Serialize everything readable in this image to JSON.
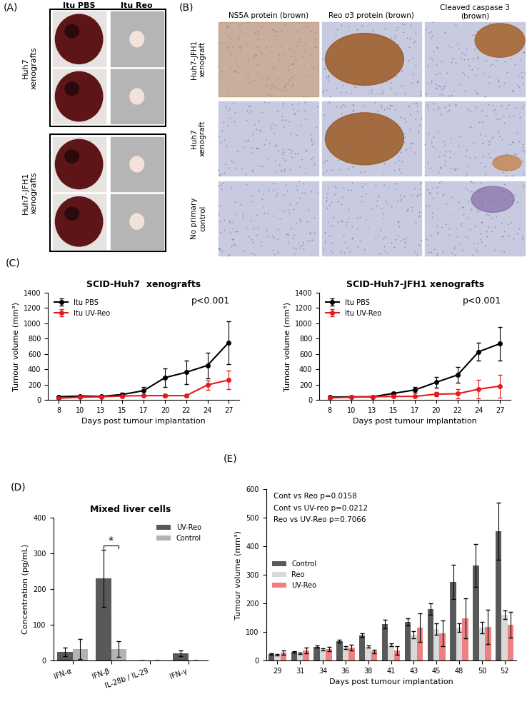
{
  "image_panels": [
    {
      "panel_label": "(A)",
      "columns": [
        "Itu PBS",
        "Itu Reo"
      ],
      "rows": [
        "Huh7\nxenografts",
        "Huh7-JFH1\nxenografts"
      ]
    },
    {
      "panel_label": "(B)",
      "columns": [
        "NS5A protein (brown)",
        "Reo σ3 protein (brown)",
        "Cleaved caspase 3\n(brown)"
      ],
      "rows": [
        "Huh7-JFH1\nxenograft",
        "Huh7\nxenograft",
        "No primary\ncontrol"
      ]
    }
  ],
  "chart_data": [
    {
      "type": "line",
      "panel_label": "(C)",
      "title": "SCID-Huh7  xenografts",
      "x_label": "Days post tumour implantation",
      "y_label": "Tumour volume (mm³)",
      "categories": [
        "8",
        "10",
        "13",
        "15",
        "17",
        "20",
        "22",
        "24",
        "27"
      ],
      "series": [
        {
          "name": "Itu PBS",
          "color": "#000000",
          "marker": "circle",
          "values": [
            40,
            50,
            45,
            70,
            120,
            290,
            360,
            450,
            750
          ],
          "errors": [
            10,
            10,
            10,
            20,
            50,
            120,
            150,
            170,
            280
          ]
        },
        {
          "name": "Itu UV-Reo",
          "color": "#e41a1c",
          "marker": "circle",
          "values": [
            20,
            35,
            40,
            50,
            55,
            55,
            55,
            195,
            260
          ],
          "errors": [
            5,
            10,
            5,
            10,
            10,
            20,
            15,
            60,
            120
          ]
        }
      ],
      "ylim": [
        0,
        1400
      ],
      "yticks": [
        0,
        200,
        400,
        600,
        800,
        1000,
        1200,
        1400
      ],
      "annotations": [
        "p<0.001"
      ],
      "legend": "upper left",
      "grid": false
    },
    {
      "type": "line",
      "title": "SCID-Huh7-JFH1 xenografts",
      "x_label": "Days post tumour implantation",
      "y_label": "Tumour volume (mm³)",
      "categories": [
        "8",
        "10",
        "13",
        "15",
        "17",
        "20",
        "22",
        "24",
        "27"
      ],
      "series": [
        {
          "name": "Itu PBS",
          "color": "#000000",
          "marker": "circle",
          "values": [
            35,
            40,
            40,
            85,
            130,
            230,
            325,
            630,
            735
          ],
          "errors": [
            5,
            5,
            5,
            20,
            40,
            70,
            100,
            120,
            220
          ]
        },
        {
          "name": "Itu UV-Reo",
          "color": "#e41a1c",
          "marker": "circle",
          "values": [
            25,
            35,
            40,
            45,
            45,
            75,
            80,
            140,
            180
          ],
          "errors": [
            5,
            5,
            5,
            10,
            10,
            30,
            60,
            120,
            150
          ]
        }
      ],
      "ylim": [
        0,
        1400
      ],
      "yticks": [
        0,
        200,
        400,
        600,
        800,
        1000,
        1200,
        1400
      ],
      "annotations": [
        "p<0.001"
      ],
      "legend": "upper left",
      "grid": false
    },
    {
      "type": "bar",
      "panel_label": "(D)",
      "title": "Mixed liver cells",
      "y_label": "Concentration (pg/mL)",
      "categories": [
        "IFN-α",
        "IFN-β",
        "IL-28b / IL-29",
        "IFN-γ"
      ],
      "series": [
        {
          "name": "UV-Reo",
          "color": "#595959",
          "values": [
            25,
            230,
            0,
            20
          ],
          "errors": [
            12,
            80,
            0,
            8
          ]
        },
        {
          "name": "Control",
          "color": "#b3b3b3",
          "values": [
            32,
            32,
            0,
            0
          ],
          "errors": [
            28,
            22,
            0,
            0
          ]
        }
      ],
      "ylim": [
        0,
        400
      ],
      "yticks": [
        0,
        100,
        200,
        300,
        400
      ],
      "annotations": [
        {
          "text": "*",
          "category": "IFN-β"
        }
      ],
      "legend": "upper right",
      "grid": false
    },
    {
      "type": "bar",
      "panel_label": "(E)",
      "x_label": "Days post tumour implantation",
      "y_label": "Tumour volume (mm³)",
      "categories": [
        "29",
        "31",
        "34",
        "36",
        "38",
        "41",
        "43",
        "45",
        "48",
        "50",
        "52"
      ],
      "series": [
        {
          "name": "Control",
          "color": "#595959",
          "values": [
            22,
            30,
            48,
            68,
            88,
            128,
            135,
            180,
            275,
            333,
            452
          ],
          "errors": [
            3,
            3,
            4,
            5,
            6,
            15,
            12,
            20,
            60,
            75,
            100
          ]
        },
        {
          "name": "Reo",
          "color": "#d9d9d9",
          "values": [
            20,
            25,
            38,
            45,
            48,
            55,
            90,
            110,
            115,
            115,
            160
          ],
          "errors": [
            2,
            3,
            4,
            5,
            4,
            5,
            12,
            20,
            15,
            20,
            15
          ]
        },
        {
          "name": "UV-Reo",
          "color": "#f08080",
          "values": [
            28,
            35,
            40,
            45,
            32,
            35,
            115,
            95,
            148,
            118,
            125
          ],
          "errors": [
            8,
            10,
            8,
            10,
            6,
            15,
            50,
            45,
            70,
            60,
            45
          ]
        }
      ],
      "ylim": [
        0,
        600
      ],
      "yticks": [
        0,
        100,
        200,
        300,
        400,
        500,
        600
      ],
      "annotations": [
        "Cont vs Reo p=0.0158",
        "Cont vs UV-reo p=0.0212",
        "Reo vs UV-Reo p=0.7066"
      ],
      "legend": "center left",
      "grid": false
    }
  ]
}
